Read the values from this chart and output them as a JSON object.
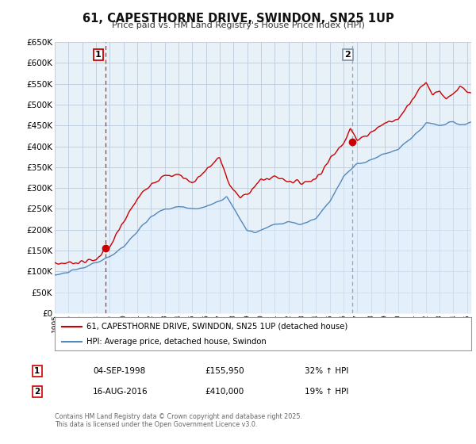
{
  "title": "61, CAPESTHORNE DRIVE, SWINDON, SN25 1UP",
  "subtitle": "Price paid vs. HM Land Registry's House Price Index (HPI)",
  "xlim": [
    1995.0,
    2025.3
  ],
  "ylim": [
    0,
    650000
  ],
  "yticks": [
    0,
    50000,
    100000,
    150000,
    200000,
    250000,
    300000,
    350000,
    400000,
    450000,
    500000,
    550000,
    600000,
    650000
  ],
  "ytick_labels": [
    "£0",
    "£50K",
    "£100K",
    "£150K",
    "£200K",
    "£250K",
    "£300K",
    "£350K",
    "£400K",
    "£450K",
    "£500K",
    "£550K",
    "£600K",
    "£650K"
  ],
  "red_color": "#cc0000",
  "blue_color": "#5588bb",
  "blue_fill_color": "#ddeeff",
  "chart_bg_color": "#e8f0f8",
  "vline1_x": 1998.67,
  "vline2_x": 2016.62,
  "marker1_x": 1998.67,
  "marker1_y": 155950,
  "marker2_x": 2016.62,
  "marker2_y": 410000,
  "legend_label_red": "61, CAPESTHORNE DRIVE, SWINDON, SN25 1UP (detached house)",
  "legend_label_blue": "HPI: Average price, detached house, Swindon",
  "note1_date": "04-SEP-1998",
  "note1_price": "£155,950",
  "note1_hpi": "32% ↑ HPI",
  "note2_date": "16-AUG-2016",
  "note2_price": "£410,000",
  "note2_hpi": "19% ↑ HPI",
  "copyright_text": "Contains HM Land Registry data © Crown copyright and database right 2025.\nThis data is licensed under the Open Government Licence v3.0.",
  "background_color": "#ffffff",
  "grid_color": "#bbccdd"
}
